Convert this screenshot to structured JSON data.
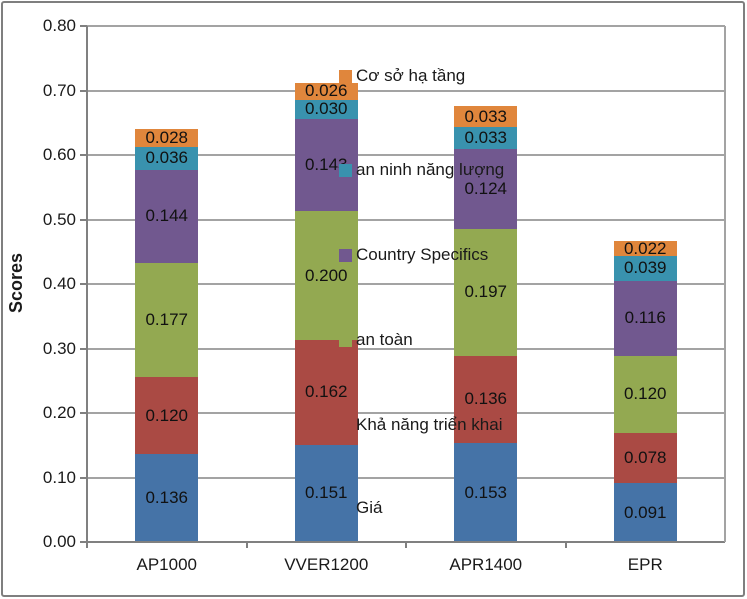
{
  "chart_data": {
    "type": "bar",
    "stacked": true,
    "title": "",
    "ylabel": "Scores",
    "xlabel": "",
    "categories": [
      "AP1000",
      "VVER1200",
      "APR1400",
      "EPR"
    ],
    "series": [
      {
        "name": "Giá",
        "color": "#4573A7",
        "values": [
          0.136,
          0.151,
          0.153,
          0.091
        ]
      },
      {
        "name": "Khả năng triển khai",
        "color": "#AA4A44",
        "values": [
          0.12,
          0.162,
          0.136,
          0.078
        ]
      },
      {
        "name": "an toàn",
        "color": "#93A951",
        "values": [
          0.177,
          0.2,
          0.197,
          0.12
        ]
      },
      {
        "name": "Country Specifics",
        "color": "#71588F",
        "values": [
          0.144,
          0.143,
          0.124,
          0.116
        ]
      },
      {
        "name": "an ninh năng lượng",
        "color": "#3992AE",
        "values": [
          0.036,
          0.03,
          0.033,
          0.039
        ]
      },
      {
        "name": "Cơ sở hạ tầng",
        "color": "#E0863C",
        "values": [
          0.028,
          0.026,
          0.033,
          0.022
        ]
      }
    ],
    "totals": [
      0.641,
      0.712,
      0.676,
      0.466
    ],
    "ylim": [
      0,
      0.8
    ],
    "yticks": [
      "0.00",
      "0.10",
      "0.20",
      "0.30",
      "0.40",
      "0.50",
      "0.60",
      "0.70",
      "0.80"
    ],
    "grid": true,
    "legend_position": "overlay-center-right",
    "legend_order": "top-series-first",
    "label_format": "0.000",
    "colors": {
      "axis": "#808080",
      "gridline": "#A3A3A3",
      "frame_border": "#7F7F7F",
      "text": "#1A1A1A"
    }
  }
}
